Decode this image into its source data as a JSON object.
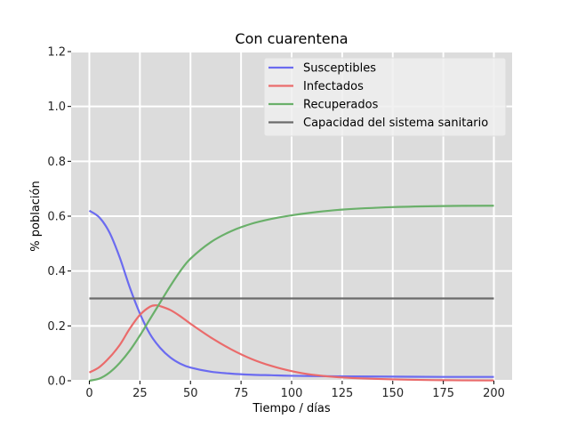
{
  "chart_data": {
    "type": "line",
    "title": "Con cuarentena",
    "xlabel": "Tiempo / días",
    "ylabel": "% población",
    "xlim": [
      -9,
      209
    ],
    "ylim": [
      0,
      1.2
    ],
    "xticks": [
      0,
      25,
      50,
      75,
      100,
      125,
      150,
      175,
      200
    ],
    "yticks": [
      0.0,
      0.2,
      0.4,
      0.6,
      0.8,
      1.0,
      1.2
    ],
    "xtick_labels": [
      "0",
      "25",
      "50",
      "75",
      "100",
      "125",
      "150",
      "175",
      "200"
    ],
    "ytick_labels": [
      "0.0",
      "0.2",
      "0.4",
      "0.6",
      "0.8",
      "1.0",
      "1.2"
    ],
    "grid": true,
    "legend_position": "top-right",
    "background": "#dcdcdc",
    "series": [
      {
        "name": "Susceptibles",
        "color": "#6b6bf0",
        "x": [
          0,
          5,
          10,
          15,
          20,
          25,
          30,
          35,
          40,
          45,
          50,
          60,
          70,
          80,
          90,
          100,
          125,
          150,
          175,
          200
        ],
        "y": [
          0.62,
          0.595,
          0.54,
          0.45,
          0.34,
          0.245,
          0.17,
          0.12,
          0.085,
          0.062,
          0.048,
          0.033,
          0.026,
          0.022,
          0.02,
          0.018,
          0.016,
          0.015,
          0.014,
          0.014
        ]
      },
      {
        "name": "Infectados",
        "color": "#ea6b6b",
        "x": [
          0,
          5,
          10,
          15,
          20,
          25,
          30,
          33,
          35,
          40,
          45,
          50,
          60,
          70,
          80,
          90,
          100,
          110,
          125,
          150,
          175,
          200
        ],
        "y": [
          0.03,
          0.05,
          0.085,
          0.13,
          0.19,
          0.24,
          0.27,
          0.275,
          0.272,
          0.258,
          0.235,
          0.208,
          0.158,
          0.115,
          0.08,
          0.054,
          0.035,
          0.022,
          0.012,
          0.005,
          0.002,
          0.001
        ]
      },
      {
        "name": "Recuperados",
        "color": "#6ab06a",
        "x": [
          0,
          5,
          10,
          15,
          20,
          25,
          30,
          35,
          40,
          45,
          50,
          60,
          70,
          80,
          90,
          100,
          110,
          125,
          150,
          175,
          200
        ],
        "y": [
          0.0,
          0.008,
          0.03,
          0.065,
          0.11,
          0.165,
          0.225,
          0.285,
          0.345,
          0.4,
          0.445,
          0.505,
          0.545,
          0.572,
          0.59,
          0.603,
          0.613,
          0.624,
          0.633,
          0.637,
          0.638
        ]
      },
      {
        "name": "Capacidad del sistema sanitario",
        "color": "#6b6b6b",
        "x": [
          0,
          200
        ],
        "y": [
          0.3,
          0.3
        ]
      }
    ]
  }
}
